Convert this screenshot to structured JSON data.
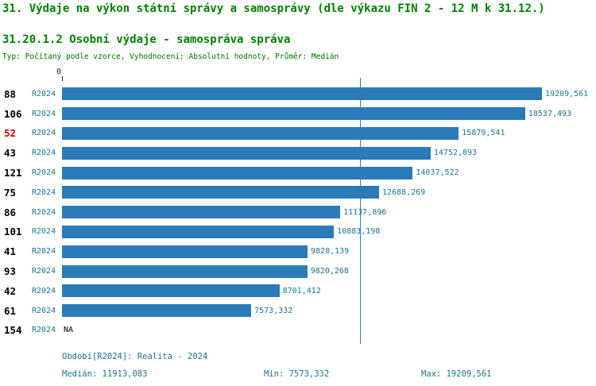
{
  "header": {
    "title": "31. Výdaje na výkon státní správy a samosprávy (dle výkazu FIN 2 - 12 M k 31.12.)",
    "subtitle": "31.20.1.2 Osobní výdaje - samospráva správa",
    "meta": "Typ: Počítaný podle vzorce, Vyhodnocení: Absolutní hodnoty, Průměr: Medián"
  },
  "chart_data": {
    "type": "bar",
    "orientation": "horizontal",
    "title": "31.20.1.2 Osobní výdaje - samospráva správa",
    "x_axis": {
      "zero_label": "0",
      "min": 0,
      "max": 19209.561
    },
    "median_line_value": 11913.083,
    "legend_position": "bottom",
    "grid": false,
    "rows": [
      {
        "id": "88",
        "period": "R2024",
        "value": 19209.561,
        "value_label": "19209,561",
        "id_highlighted": false
      },
      {
        "id": "106",
        "period": "R2024",
        "value": 18537.493,
        "value_label": "18537,493",
        "id_highlighted": false
      },
      {
        "id": "52",
        "period": "R2024",
        "value": 15879.541,
        "value_label": "15879,541",
        "id_highlighted": true
      },
      {
        "id": "43",
        "period": "R2024",
        "value": 14752.893,
        "value_label": "14752,893",
        "id_highlighted": false
      },
      {
        "id": "121",
        "period": "R2024",
        "value": 14037.522,
        "value_label": "14037,522",
        "id_highlighted": false
      },
      {
        "id": "75",
        "period": "R2024",
        "value": 12688.269,
        "value_label": "12688,269",
        "id_highlighted": false
      },
      {
        "id": "86",
        "period": "R2024",
        "value": 11137.896,
        "value_label": "11137,896",
        "id_highlighted": false
      },
      {
        "id": "101",
        "period": "R2024",
        "value": 10883.198,
        "value_label": "10883,198",
        "id_highlighted": false
      },
      {
        "id": "41",
        "period": "R2024",
        "value": 9828.139,
        "value_label": "9828,139",
        "id_highlighted": false
      },
      {
        "id": "93",
        "period": "R2024",
        "value": 9820.268,
        "value_label": "9820,268",
        "id_highlighted": false
      },
      {
        "id": "42",
        "period": "R2024",
        "value": 8701.412,
        "value_label": "8701,412",
        "id_highlighted": false
      },
      {
        "id": "61",
        "period": "R2024",
        "value": 7573.332,
        "value_label": "7573,332",
        "id_highlighted": false
      },
      {
        "id": "154",
        "period": "R2024",
        "value": null,
        "value_label": "NA",
        "id_highlighted": false
      }
    ]
  },
  "footer": {
    "period_line": "Období[R2024]: Realita - 2024",
    "median": "Medián: 11913,083",
    "min": "Min: 7573,332",
    "max": "Max: 19209,561"
  },
  "colors": {
    "bar": "#2b7bb8",
    "title_green": "#008000",
    "teal_text": "#1b7390",
    "highlight_red": "#cc0000"
  }
}
